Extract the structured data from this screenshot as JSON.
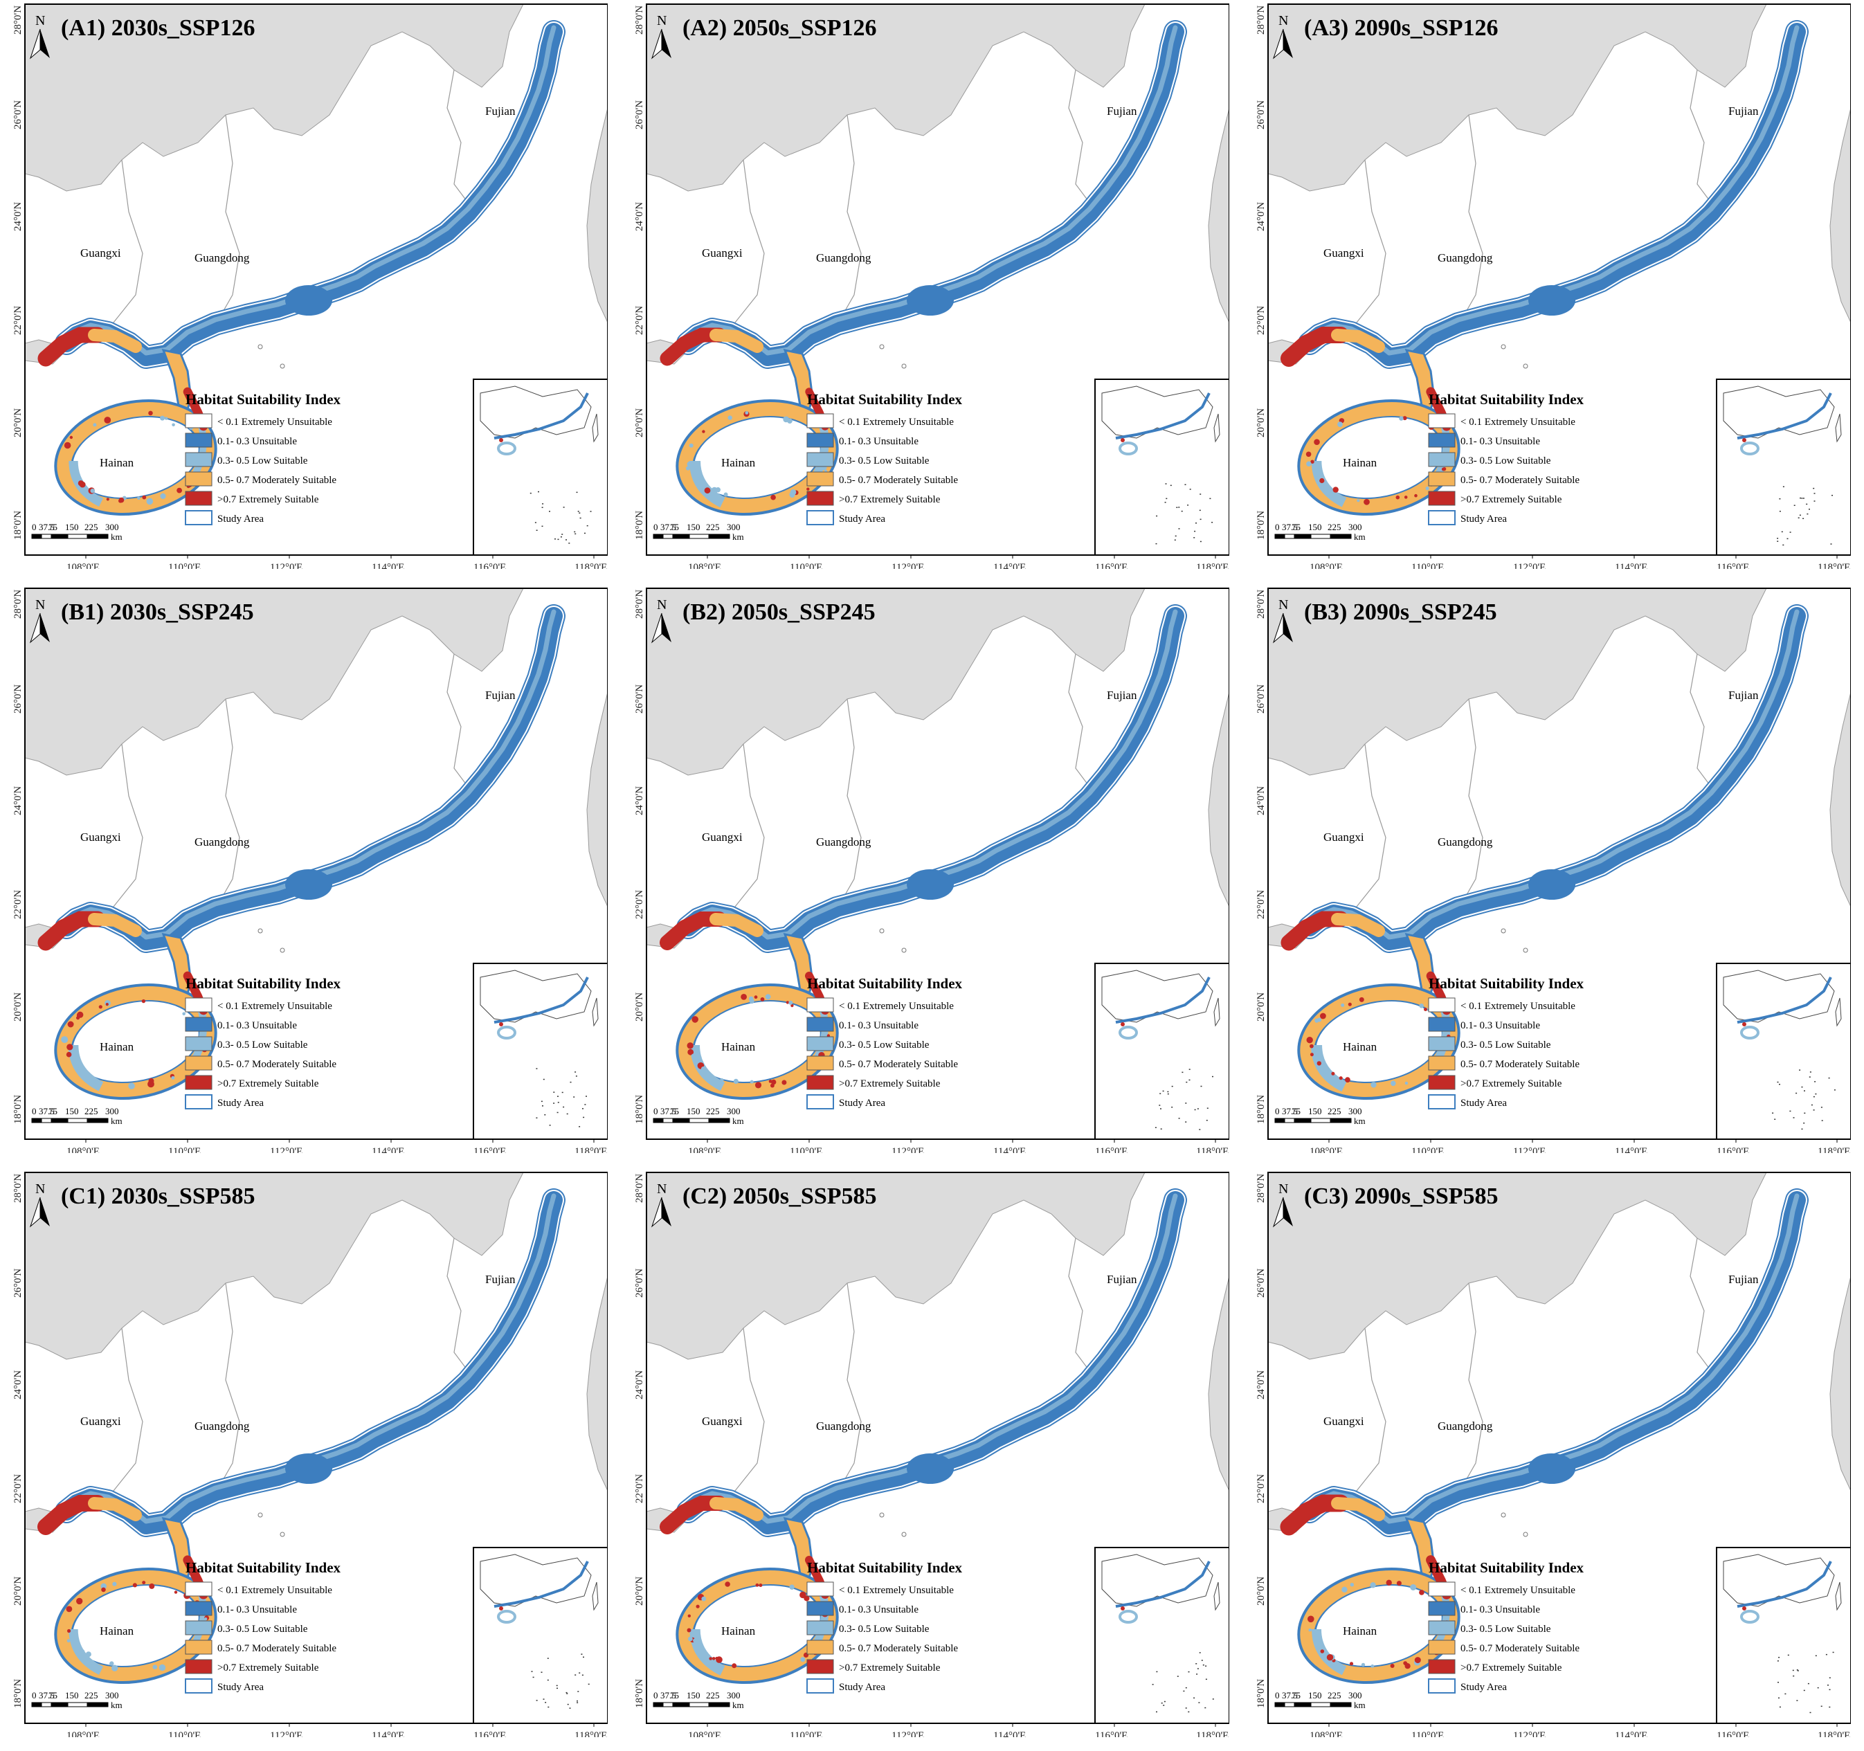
{
  "colors": {
    "extremely_unsuitable": "#ffffff",
    "unsuitable": "#3d7ebf",
    "low_suitable": "#8fbcd9",
    "moderately_suitable": "#f4b45a",
    "extremely_suitable": "#c32a26",
    "study_area": "#3d7ebf",
    "land_outside": "#dcdcdc",
    "province_border": "#9a9a9a"
  },
  "map": {
    "provinces": [
      "Guangxi",
      "Guangdong",
      "Fujian",
      "Hainan"
    ],
    "lon_ticks": [
      "108°0'E",
      "110°0'E",
      "112°0'E",
      "114°0'E",
      "116°0'E",
      "118°0'E"
    ],
    "lat_ticks": [
      "18°0'N",
      "20°0'N",
      "22°0'N",
      "24°0'N",
      "26°0'N",
      "28°0'N"
    ],
    "north_label": "N",
    "scale_labels": [
      "0",
      "37.5",
      "75",
      "150",
      "225",
      "300"
    ],
    "scale_unit": "km"
  },
  "legend": {
    "title": "Habitat Suitability Index",
    "items": [
      {
        "range": "< 0.1",
        "label": "Extremely Unsuitable",
        "key": "extremely_unsuitable"
      },
      {
        "range": "0.1- 0.3",
        "label": "Unsuitable",
        "key": "unsuitable"
      },
      {
        "range": "0.3- 0.5",
        "label": "Low Suitable",
        "key": "low_suitable"
      },
      {
        "range": "0.5- 0.7",
        "label": "Moderately Suitable",
        "key": "moderately_suitable"
      },
      {
        "range": ">0.7",
        "label": "Extremely Suitable",
        "key": "extremely_suitable"
      },
      {
        "range": "",
        "label": "Study Area",
        "key": "study_area"
      }
    ]
  },
  "panels": [
    {
      "title": "(A1) 2030s_SSP126",
      "scenario": "SSP126",
      "period": "2030s",
      "south_low": 0.35,
      "south_red": 0.55
    },
    {
      "title": "(A2) 2050s_SSP126",
      "scenario": "SSP126",
      "period": "2050s",
      "south_low": 0.55,
      "south_red": 0.45
    },
    {
      "title": "(A3) 2090s_SSP126",
      "scenario": "SSP126",
      "period": "2090s",
      "south_low": 0.45,
      "south_red": 0.6
    },
    {
      "title": "(B1) 2030s_SSP245",
      "scenario": "SSP245",
      "period": "2030s",
      "south_low": 0.45,
      "south_red": 0.55
    },
    {
      "title": "(B2) 2050s_SSP245",
      "scenario": "SSP245",
      "period": "2050s",
      "south_low": 0.4,
      "south_red": 0.5
    },
    {
      "title": "(B3) 2090s_SSP245",
      "scenario": "SSP245",
      "period": "2090s",
      "south_low": 0.55,
      "south_red": 0.55
    },
    {
      "title": "(C1) 2030s_SSP585",
      "scenario": "SSP585",
      "period": "2030s",
      "south_low": 0.35,
      "south_red": 0.6
    },
    {
      "title": "(C2) 2050s_SSP585",
      "scenario": "SSP585",
      "period": "2050s",
      "south_low": 0.5,
      "south_red": 0.5
    },
    {
      "title": "(C3) 2090s_SSP585",
      "scenario": "SSP585",
      "period": "2090s",
      "south_low": 0.4,
      "south_red": 0.65
    }
  ]
}
